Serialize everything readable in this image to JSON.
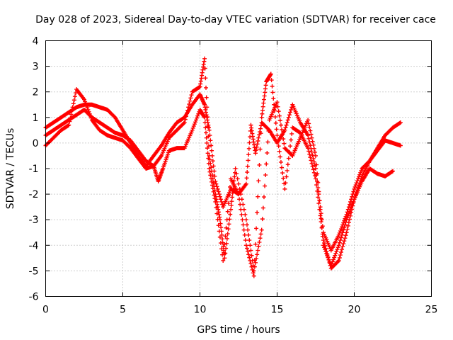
{
  "chart_data": {
    "type": "scatter",
    "title": "Day 028 of 2023, Sidereal Day-to-day VTEC variation (SDTVAR) for receiver cace",
    "xlabel": "GPS time / hours",
    "ylabel": "SDTVAR / TECUs",
    "xlim": [
      0,
      25
    ],
    "ylim": [
      -6,
      4
    ],
    "x_ticks": [
      "0",
      "5",
      "10",
      "15",
      "20",
      "25"
    ],
    "y_ticks": [
      "-6",
      "-5",
      "-4",
      "-3",
      "-2",
      "-1",
      "0",
      "1",
      "2",
      "3",
      "4"
    ],
    "grid": true,
    "marker": "+",
    "series_color": "#ff0000",
    "series": [
      {
        "x": [
          0.0,
          0.5,
          1.0,
          1.5,
          2.0,
          2.5,
          3.0,
          3.5,
          4.0,
          4.5,
          5.0,
          5.5,
          6.0,
          6.5,
          7.0,
          7.5,
          8.0,
          8.5,
          9.0,
          9.5,
          10.0,
          10.3,
          10.6,
          11.0,
          11.5,
          12.0,
          12.5,
          13.0,
          13.3,
          13.6,
          14.0,
          14.5,
          15.0,
          15.5,
          16.0,
          16.5,
          17.0,
          17.5,
          18.0,
          18.5,
          19.0,
          19.5,
          20.0,
          20.5,
          21.0,
          21.5,
          22.0,
          22.5,
          23.0
        ],
        "y": [
          0.6,
          0.8,
          1.0,
          1.2,
          1.4,
          1.5,
          1.5,
          1.4,
          1.3,
          1.0,
          0.5,
          0.0,
          -0.5,
          -0.9,
          -0.5,
          -0.1,
          0.4,
          0.8,
          1.0,
          1.5,
          1.9,
          1.5,
          0.5,
          -1.5,
          -2.5,
          -1.8,
          -2.0,
          -1.6,
          0.7,
          -0.4,
          0.8,
          0.5,
          0.0,
          0.5,
          1.5,
          0.8,
          0.3,
          -1.0,
          -3.5,
          -4.2,
          -3.6,
          -2.8,
          -1.8,
          -1.0,
          -0.7,
          -0.2,
          0.3,
          0.6,
          0.8
        ]
      },
      {
        "x": [
          0.0,
          0.5,
          1.0,
          1.5,
          2.0,
          2.5,
          3.0,
          3.5,
          4.0,
          4.5,
          5.0,
          5.5,
          6.0,
          6.5,
          7.0,
          7.5,
          8.0,
          8.5,
          9.0,
          9.5,
          10.0,
          10.3,
          10.6,
          11.0,
          11.3,
          11.6,
          12.0,
          12.3,
          13.0,
          13.5,
          14.0,
          14.5,
          15.0,
          15.5,
          16.0,
          16.5,
          17.0,
          17.5,
          18.0,
          18.5,
          19.0,
          19.5,
          20.0,
          20.5,
          21.0,
          21.5,
          22.0,
          22.5,
          23.0
        ],
        "y": [
          0.3,
          0.5,
          0.7,
          0.9,
          1.1,
          1.3,
          1.0,
          0.8,
          0.6,
          0.4,
          0.3,
          0.1,
          -0.3,
          -0.7,
          -0.9,
          -0.5,
          0.2,
          0.5,
          0.8,
          2.0,
          2.2,
          3.3,
          -0.5,
          -2.0,
          -3.0,
          -4.5,
          -2.6,
          -1.0,
          -3.0,
          -5.0,
          -3.4,
          0.9,
          1.6,
          -0.2,
          -0.5,
          0.2,
          0.9,
          -0.5,
          -4.0,
          -4.8,
          -4.0,
          -3.0,
          -2.2,
          -1.3,
          -0.7,
          -0.3,
          0.1,
          0.0,
          -0.1
        ]
      },
      {
        "x": [
          0.0,
          0.5,
          1.0,
          1.5,
          2.0,
          2.5,
          3.0,
          3.5,
          4.0,
          4.5,
          5.0,
          5.5,
          6.0,
          6.5,
          7.0,
          7.3,
          7.6,
          8.0,
          8.5,
          9.0,
          9.5,
          10.0,
          10.3,
          10.6,
          11.0,
          11.5,
          12.0,
          12.5,
          13.0,
          13.5,
          14.0,
          14.3,
          14.6,
          15.0,
          15.5,
          16.0,
          16.5,
          17.0,
          17.5,
          18.0,
          18.5,
          19.0,
          19.5,
          20.0,
          20.5,
          21.0,
          21.5,
          22.0,
          22.5
        ],
        "y": [
          -0.1,
          0.2,
          0.5,
          0.7,
          2.1,
          1.7,
          0.9,
          0.5,
          0.3,
          0.2,
          0.1,
          -0.2,
          -0.6,
          -1.0,
          -0.9,
          -1.5,
          -1.0,
          -0.3,
          -0.2,
          -0.2,
          0.5,
          1.3,
          1.0,
          -1.0,
          -2.3,
          -4.6,
          -1.4,
          -2.0,
          -4.0,
          -5.2,
          1.0,
          2.4,
          2.7,
          0.3,
          -1.8,
          0.6,
          0.4,
          -0.2,
          -1.4,
          -3.8,
          -4.9,
          -4.6,
          -3.5,
          -2.2,
          -1.5,
          -1.0,
          -1.2,
          -1.3,
          -1.1
        ]
      }
    ]
  }
}
